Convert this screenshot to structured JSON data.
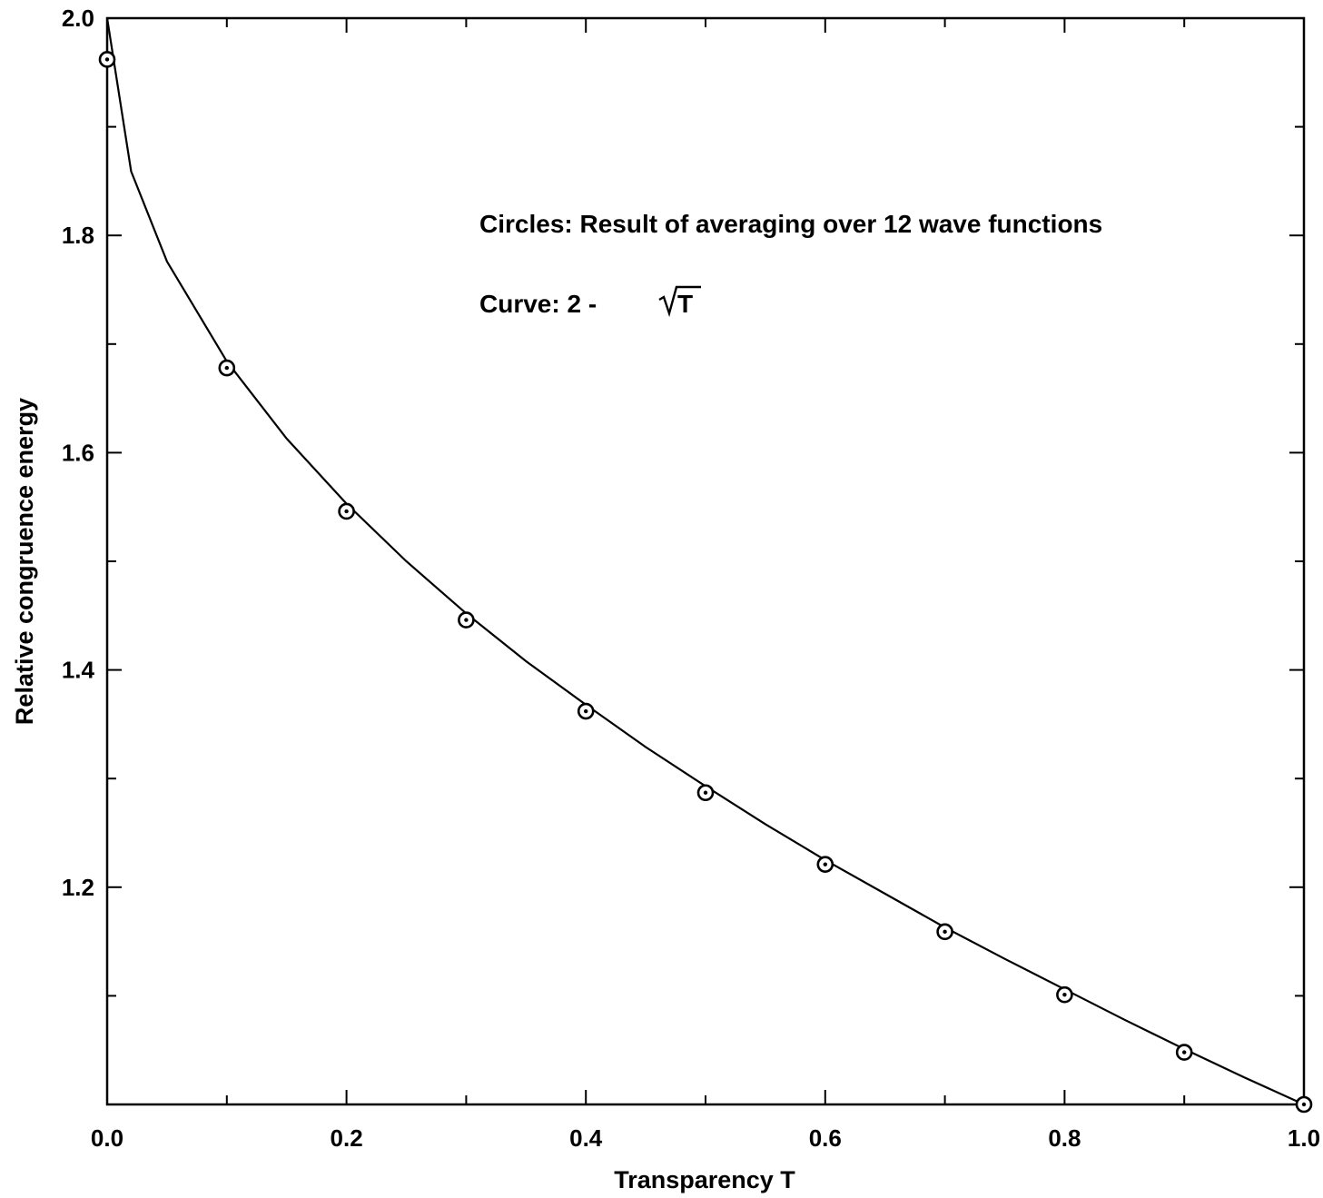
{
  "chart_data": {
    "type": "scatter",
    "title": "",
    "xlabel": "Transparency T",
    "ylabel": "Relative congruence energy",
    "xlim": [
      0.0,
      1.0
    ],
    "ylim": [
      1.0,
      2.0
    ],
    "x_ticks": [
      "0.0",
      "0.2",
      "0.4",
      "0.6",
      "0.8",
      "1.0"
    ],
    "y_ticks": [
      "1.2",
      "1.4",
      "1.6",
      "1.8",
      "2.0"
    ],
    "grid": false,
    "series": [
      {
        "marker": "circle-dot",
        "x": [
          0.0,
          0.1,
          0.2,
          0.3,
          0.4,
          0.5,
          0.6,
          0.7,
          0.8,
          0.9,
          1.0
        ],
        "y": [
          1.962,
          1.678,
          1.546,
          1.446,
          1.362,
          1.287,
          1.221,
          1.159,
          1.101,
          1.048,
          1.0
        ]
      },
      {
        "curve": "2 - sqrt(T)",
        "x": [
          0.0,
          0.02,
          0.05,
          0.1,
          0.15,
          0.2,
          0.25,
          0.3,
          0.35,
          0.4,
          0.45,
          0.5,
          0.55,
          0.6,
          0.65,
          0.7,
          0.75,
          0.8,
          0.85,
          0.9,
          0.95,
          1.0
        ],
        "y": [
          2.0,
          1.859,
          1.776,
          1.684,
          1.613,
          1.553,
          1.5,
          1.452,
          1.408,
          1.368,
          1.329,
          1.293,
          1.258,
          1.225,
          1.194,
          1.163,
          1.134,
          1.106,
          1.078,
          1.051,
          1.025,
          1.0
        ]
      }
    ],
    "annotations": {
      "circles": "Circles:  Result of averaging over 12 wave functions",
      "curve_prefix": "Curve:  2  -",
      "curve_sqrt_arg": "T"
    }
  }
}
